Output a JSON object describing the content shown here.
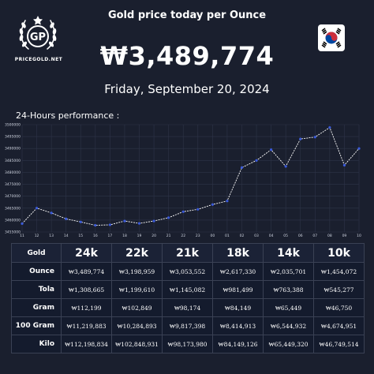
{
  "brand": {
    "logo_letters": "GP",
    "logo_text": "PRICEGOLD.NET"
  },
  "header": {
    "title": "Gold price today per Ounce",
    "price": "₩3,489,774",
    "date": "Friday, September 20, 2024"
  },
  "flag": {
    "country": "south-korea",
    "colors": {
      "red": "#cd2e3a",
      "blue": "#0047a0"
    }
  },
  "perf_label": "24-Hours performance :",
  "chart_data": {
    "type": "line",
    "x": [
      "11",
      "12",
      "13",
      "14",
      "15",
      "16",
      "17",
      "18",
      "19",
      "20",
      "21",
      "22",
      "23",
      "00",
      "01",
      "02",
      "03",
      "04",
      "05",
      "06",
      "07",
      "08",
      "09",
      "10"
    ],
    "values": [
      3458500,
      3465000,
      3463000,
      3460500,
      3459200,
      3457800,
      3458000,
      3459600,
      3458600,
      3459600,
      3461000,
      3463500,
      3464500,
      3466500,
      3468000,
      3482000,
      3485000,
      3489500,
      3482500,
      3494000,
      3494800,
      3498800,
      3483000,
      3490000
    ],
    "ylim": [
      3455000,
      3500000
    ],
    "yticks": [
      "3455000",
      "3460000",
      "3465000",
      "3470000",
      "3475000",
      "3480000",
      "3485000",
      "3490000",
      "3495000",
      "3500000"
    ],
    "grid": true,
    "line_color": "#ffffff",
    "point_color": "#3b5bdb"
  },
  "table": {
    "corner": "Gold",
    "columns": [
      "24k",
      "22k",
      "21k",
      "18k",
      "14k",
      "10k"
    ],
    "rows": [
      {
        "label": "Ounce",
        "values": [
          "₩3,489,774",
          "₩3,198,959",
          "₩3,053,552",
          "₩2,617,330",
          "₩2,035,701",
          "₩1,454,072"
        ]
      },
      {
        "label": "Tola",
        "values": [
          "₩1,308,665",
          "₩1,199,610",
          "₩1,145,082",
          "₩981,499",
          "₩763,388",
          "₩545,277"
        ]
      },
      {
        "label": "Gram",
        "values": [
          "₩112,199",
          "₩102,849",
          "₩98,174",
          "₩84,149",
          "₩65,449",
          "₩46,750"
        ]
      },
      {
        "label": "100 Gram",
        "values": [
          "₩11,219,883",
          "₩10,284,893",
          "₩9,817,398",
          "₩8,414,913",
          "₩6,544,932",
          "₩4,674,951"
        ]
      },
      {
        "label": "Kilo",
        "values": [
          "₩112,198,834",
          "₩102,848,931",
          "₩98,173,980",
          "₩84,149,126",
          "₩65,449,320",
          "₩46,749,514"
        ]
      }
    ]
  }
}
